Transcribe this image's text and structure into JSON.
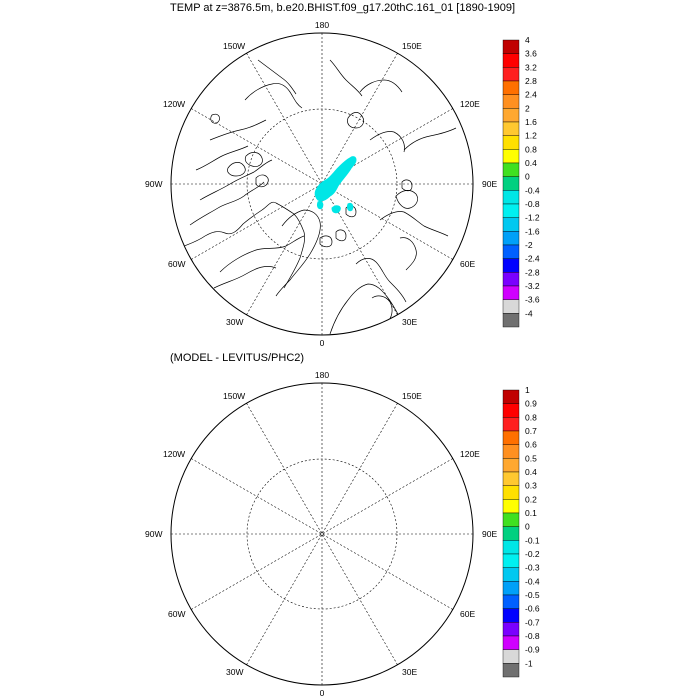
{
  "panels": [
    {
      "title": "TEMP at z=3876.5m, b.e20.BHIST.f09_g17.20thC.161_01 [1890-1909]",
      "longitude_labels": {
        "top": "180",
        "bottom": "0",
        "left": "90W",
        "right": "90E",
        "upper_left_1": "150W",
        "upper_left_2": "120W",
        "lower_left_1": "60W",
        "lower_left_2": "30W",
        "upper_right_1": "150E",
        "upper_right_2": "120E",
        "lower_right_1": "60E",
        "lower_right_2": "30E"
      },
      "colorbar_labels": [
        "4",
        "3.6",
        "3.2",
        "2.8",
        "2.4",
        "2",
        "1.6",
        "1.2",
        "0.8",
        "0.4",
        "0",
        "-0.4",
        "-0.8",
        "-1.2",
        "-1.6",
        "-2",
        "-2.4",
        "-2.8",
        "-3.2",
        "-3.6",
        "-4"
      ],
      "anomaly_fill_color": "#00e6e6"
    },
    {
      "title": "(MODEL - LEVITUS/PHC2)",
      "longitude_labels": {
        "top": "180",
        "bottom": "0",
        "left": "90W",
        "right": "90E",
        "upper_left_1": "150W",
        "upper_left_2": "120W",
        "lower_left_1": "60W",
        "lower_left_2": "30W",
        "upper_right_1": "150E",
        "upper_right_2": "120E",
        "lower_right_1": "60E",
        "lower_right_2": "30E"
      },
      "colorbar_labels": [
        "1",
        "0.9",
        "0.8",
        "0.7",
        "0.6",
        "0.5",
        "0.4",
        "0.3",
        "0.2",
        "0.1",
        "0",
        "-0.1",
        "-0.2",
        "-0.3",
        "-0.4",
        "-0.5",
        "-0.6",
        "-0.7",
        "-0.8",
        "-0.9",
        "-1"
      ]
    }
  ],
  "colorbar_colors": [
    "#c00000",
    "#ff0000",
    "#ff2020",
    "#ff7000",
    "#ff9020",
    "#ffa830",
    "#ffc830",
    "#ffe000",
    "#ffff00",
    "#40e020",
    "#00d080",
    "#00e6e6",
    "#00f0f0",
    "#00c8f0",
    "#00a0f8",
    "#0060ff",
    "#0000ff",
    "#7a00ff",
    "#d000ff",
    "#d8d8d8",
    "#707070"
  ]
}
